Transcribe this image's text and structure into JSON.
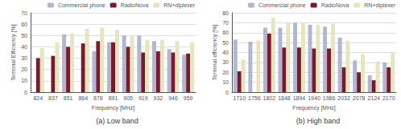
{
  "chart_data": [
    {
      "type": "bar",
      "title": "(a) Low band",
      "xlabel": "Frequency [MHz]",
      "ylabel": "Terminal Efficiency [%]",
      "categories": [
        "824",
        "837",
        "851",
        "864",
        "878",
        "891",
        "905",
        "919",
        "932",
        "946",
        "959"
      ],
      "series": [
        {
          "name": "Commercial phone",
          "color": "#b0b8d0",
          "values": [
            null,
            null,
            51,
            null,
            36,
            44,
            50,
            50,
            45,
            38,
            33
          ]
        },
        {
          "name": "RadioNova",
          "color": "#7b1a2e",
          "values": [
            30,
            32,
            40,
            43,
            45,
            44,
            40,
            35,
            36,
            35,
            34
          ]
        },
        {
          "name": "RN+diplexer",
          "color": "#e8e4c0",
          "values": [
            39,
            44,
            52,
            56,
            57,
            55,
            50,
            46,
            46,
            45,
            44
          ]
        }
      ],
      "ylim": [
        0,
        70
      ],
      "yticks": [
        0,
        10,
        20,
        30,
        40,
        50,
        60,
        70
      ],
      "grid": true,
      "legend": "upper right"
    },
    {
      "type": "bar",
      "title": "(b) High band",
      "xlabel": "Frequency [MHz]",
      "ylabel": "Terminal efficiency [%]",
      "categories": [
        "1710",
        "1756",
        "1802",
        "1848",
        "1894",
        "1940",
        "1986",
        "2032",
        "2078",
        "2124",
        "2170"
      ],
      "series": [
        {
          "name": "Commercial phone",
          "color": "#b0b8d0",
          "values": [
            53,
            51,
            65,
            65,
            70,
            68,
            66,
            55,
            32,
            17,
            30
          ]
        },
        {
          "name": "RadioNova",
          "color": "#7b1a2e",
          "values": [
            21,
            null,
            59,
            45,
            45,
            44,
            44,
            25,
            20,
            12,
            25
          ]
        },
        {
          "name": "RN+diplexer",
          "color": "#e8e4c0",
          "values": [
            33,
            52,
            75,
            70,
            70,
            68,
            69,
            52,
            38,
            31,
            40
          ]
        }
      ],
      "ylim": [
        0,
        80
      ],
      "yticks": [
        0,
        10,
        20,
        30,
        40,
        50,
        60,
        70,
        80
      ],
      "grid": true,
      "legend": "upper right"
    }
  ]
}
